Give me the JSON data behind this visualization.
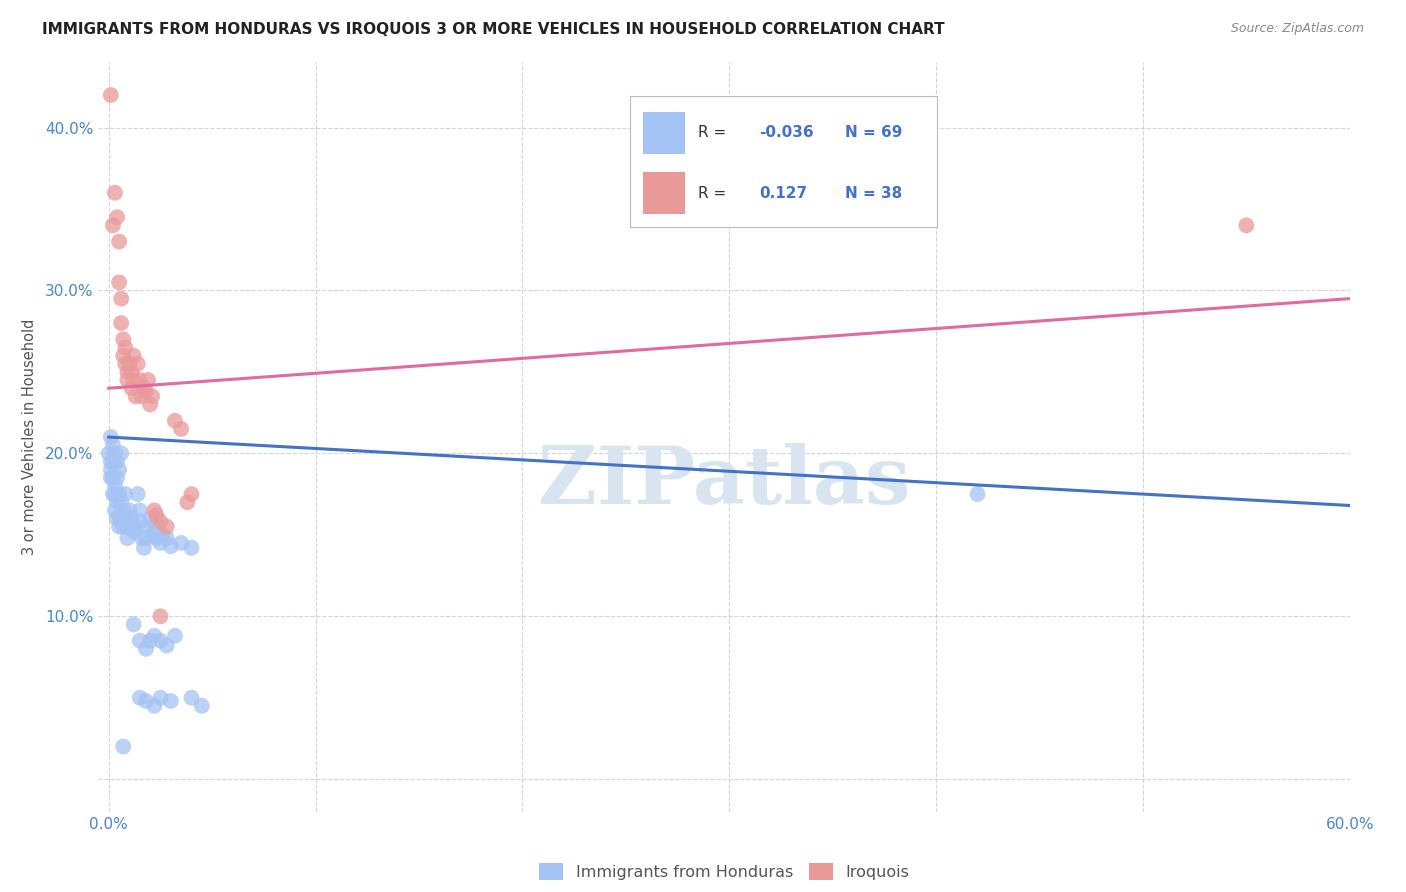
{
  "title": "IMMIGRANTS FROM HONDURAS VS IROQUOIS 3 OR MORE VEHICLES IN HOUSEHOLD CORRELATION CHART",
  "source": "Source: ZipAtlas.com",
  "ylabel": "3 or more Vehicles in Household",
  "legend_label1": "Immigrants from Honduras",
  "legend_label2": "Iroquois",
  "r1": "-0.036",
  "n1": "69",
  "r2": "0.127",
  "n2": "38",
  "blue_color": "#a4c2f4",
  "pink_color": "#ea9999",
  "blue_line_color": "#4472c4",
  "pink_line_color": "#e06c9f",
  "watermark": "ZIPatlas",
  "blue_scatter": [
    [
      0.0,
      0.2
    ],
    [
      0.001,
      0.21
    ],
    [
      0.001,
      0.19
    ],
    [
      0.001,
      0.195
    ],
    [
      0.001,
      0.185
    ],
    [
      0.002,
      0.205
    ],
    [
      0.002,
      0.195
    ],
    [
      0.002,
      0.185
    ],
    [
      0.002,
      0.175
    ],
    [
      0.003,
      0.2
    ],
    [
      0.003,
      0.18
    ],
    [
      0.003,
      0.175
    ],
    [
      0.003,
      0.165
    ],
    [
      0.004,
      0.195
    ],
    [
      0.004,
      0.185
    ],
    [
      0.004,
      0.17
    ],
    [
      0.004,
      0.16
    ],
    [
      0.005,
      0.19
    ],
    [
      0.005,
      0.175
    ],
    [
      0.005,
      0.162
    ],
    [
      0.005,
      0.155
    ],
    [
      0.006,
      0.2
    ],
    [
      0.006,
      0.17
    ],
    [
      0.006,
      0.16
    ],
    [
      0.007,
      0.165
    ],
    [
      0.007,
      0.155
    ],
    [
      0.008,
      0.175
    ],
    [
      0.008,
      0.16
    ],
    [
      0.009,
      0.155
    ],
    [
      0.009,
      0.148
    ],
    [
      0.01,
      0.165
    ],
    [
      0.01,
      0.155
    ],
    [
      0.011,
      0.16
    ],
    [
      0.012,
      0.152
    ],
    [
      0.013,
      0.155
    ],
    [
      0.014,
      0.175
    ],
    [
      0.015,
      0.165
    ],
    [
      0.015,
      0.158
    ],
    [
      0.016,
      0.148
    ],
    [
      0.017,
      0.142
    ],
    [
      0.018,
      0.155
    ],
    [
      0.018,
      0.148
    ],
    [
      0.02,
      0.16
    ],
    [
      0.021,
      0.15
    ],
    [
      0.022,
      0.155
    ],
    [
      0.023,
      0.148
    ],
    [
      0.025,
      0.145
    ],
    [
      0.026,
      0.15
    ],
    [
      0.028,
      0.148
    ],
    [
      0.03,
      0.143
    ],
    [
      0.035,
      0.145
    ],
    [
      0.04,
      0.142
    ],
    [
      0.012,
      0.095
    ],
    [
      0.015,
      0.085
    ],
    [
      0.018,
      0.08
    ],
    [
      0.02,
      0.085
    ],
    [
      0.022,
      0.088
    ],
    [
      0.025,
      0.085
    ],
    [
      0.028,
      0.082
    ],
    [
      0.032,
      0.088
    ],
    [
      0.015,
      0.05
    ],
    [
      0.018,
      0.048
    ],
    [
      0.022,
      0.045
    ],
    [
      0.025,
      0.05
    ],
    [
      0.03,
      0.048
    ],
    [
      0.007,
      0.02
    ],
    [
      0.04,
      0.05
    ],
    [
      0.045,
      0.045
    ],
    [
      0.42,
      0.175
    ]
  ],
  "pink_scatter": [
    [
      0.001,
      0.42
    ],
    [
      0.002,
      0.34
    ],
    [
      0.003,
      0.36
    ],
    [
      0.004,
      0.345
    ],
    [
      0.005,
      0.33
    ],
    [
      0.005,
      0.305
    ],
    [
      0.006,
      0.295
    ],
    [
      0.006,
      0.28
    ],
    [
      0.007,
      0.27
    ],
    [
      0.007,
      0.26
    ],
    [
      0.008,
      0.265
    ],
    [
      0.008,
      0.255
    ],
    [
      0.009,
      0.25
    ],
    [
      0.009,
      0.245
    ],
    [
      0.01,
      0.255
    ],
    [
      0.011,
      0.24
    ],
    [
      0.011,
      0.25
    ],
    [
      0.012,
      0.26
    ],
    [
      0.012,
      0.245
    ],
    [
      0.013,
      0.235
    ],
    [
      0.014,
      0.255
    ],
    [
      0.015,
      0.245
    ],
    [
      0.016,
      0.235
    ],
    [
      0.017,
      0.24
    ],
    [
      0.018,
      0.238
    ],
    [
      0.019,
      0.245
    ],
    [
      0.02,
      0.23
    ],
    [
      0.021,
      0.235
    ],
    [
      0.022,
      0.165
    ],
    [
      0.023,
      0.162
    ],
    [
      0.025,
      0.158
    ],
    [
      0.028,
      0.155
    ],
    [
      0.032,
      0.22
    ],
    [
      0.035,
      0.215
    ],
    [
      0.038,
      0.17
    ],
    [
      0.04,
      0.175
    ],
    [
      0.025,
      0.1
    ],
    [
      0.55,
      0.34
    ]
  ],
  "blue_line_x": [
    0.0,
    0.6
  ],
  "blue_line_y": [
    0.21,
    0.168
  ],
  "pink_line_x": [
    0.0,
    0.6
  ],
  "pink_line_y": [
    0.24,
    0.295
  ],
  "xlim": [
    -0.005,
    0.6
  ],
  "ylim": [
    -0.02,
    0.44
  ],
  "xtick_vals": [
    0.0,
    0.1,
    0.2,
    0.3,
    0.4,
    0.5,
    0.6
  ],
  "ytick_vals": [
    0.0,
    0.1,
    0.2,
    0.3,
    0.4
  ],
  "ytick_labels": [
    "",
    "10.0%",
    "20.0%",
    "30.0%",
    "40.0%"
  ],
  "tick_color": "#4a86c8",
  "title_fontsize": 11,
  "source_fontsize": 9,
  "legend_text_color": "#4472c4",
  "legend_R_color": "#333333"
}
